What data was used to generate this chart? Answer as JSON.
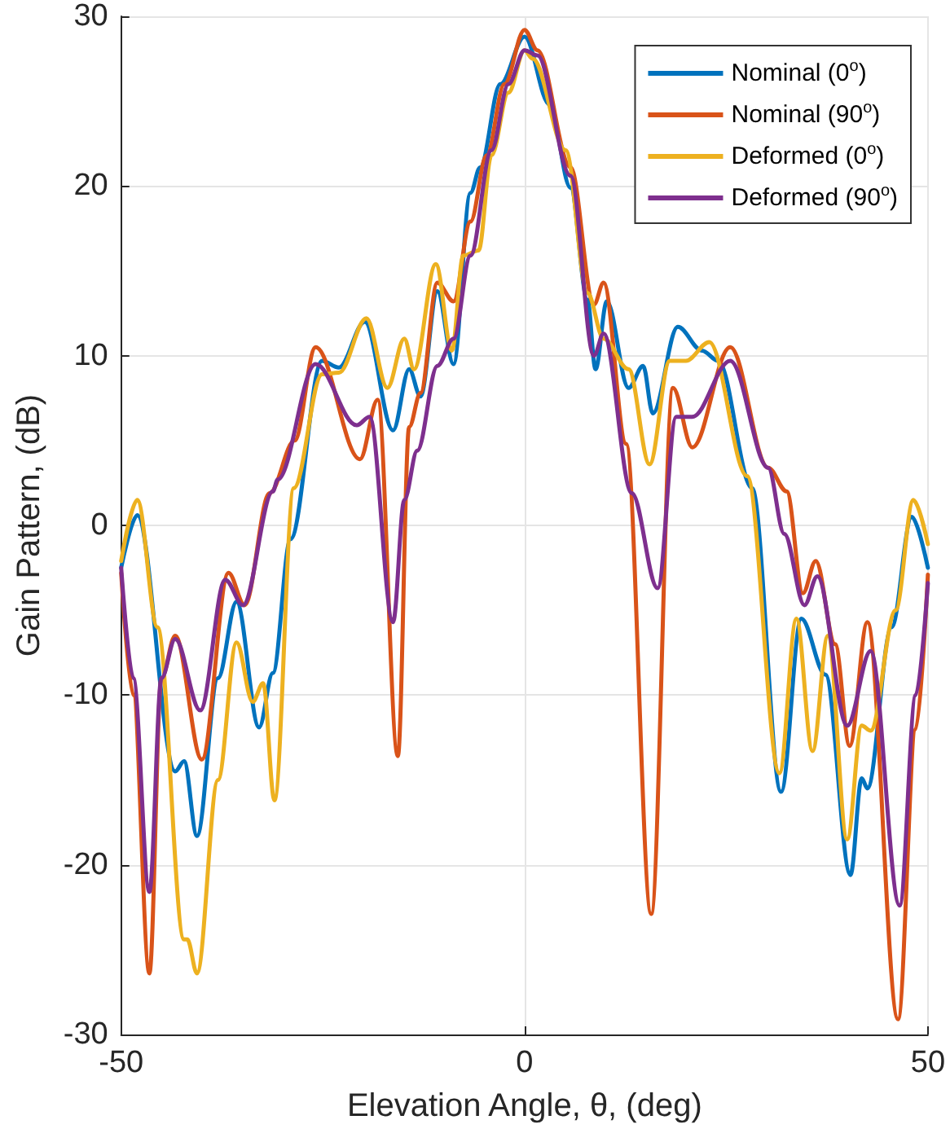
{
  "chart_data": {
    "type": "line",
    "xlabel": "Elevation Angle, θ, (deg)",
    "ylabel": "Gain Pattern, (dB)",
    "xlim": [
      -50,
      50
    ],
    "xticks": [
      -50,
      0,
      50
    ],
    "ylim": [
      -30,
      30
    ],
    "yticks": [
      -30,
      -20,
      -10,
      0,
      10,
      20,
      30
    ],
    "grid": true,
    "legend": "top right",
    "line_style": "solid",
    "marker": "none",
    "series": [
      {
        "name": "Nominal (0$^{o}$)",
        "color": "#0072bd",
        "x": [
          -50,
          -48,
          -43.3,
          -42.2,
          -40.6,
          -38,
          -35.7,
          -32.9,
          -31.2,
          -29,
          -25.1,
          -23,
          -19.8,
          -16.3,
          -14.3,
          -12.9,
          -10.8,
          -8.8,
          -6.7,
          -5.5,
          -3,
          0,
          3.1,
          5.7,
          7.8,
          8.8,
          10.2,
          12.9,
          14.7,
          15.9,
          19,
          22,
          24,
          28.2,
          31.8,
          34.3,
          37.3,
          40.4,
          41.8,
          42.5,
          45.5,
          48,
          50
        ],
        "values": [
          -2.5,
          0.6,
          -14.5,
          -13.9,
          -18.3,
          -9,
          -4.5,
          -11.9,
          -8.7,
          -0.8,
          9.7,
          9.3,
          12,
          5.6,
          9.2,
          7.6,
          13.8,
          9.5,
          19.6,
          21.1,
          26,
          28.8,
          24.8,
          19.9,
          13.3,
          9.2,
          13.2,
          8.1,
          9.4,
          6.6,
          11.7,
          10.3,
          9.7,
          2.2,
          -15.7,
          -5.5,
          -8.8,
          -20.6,
          -14.9,
          -15.5,
          -6,
          0.5,
          -2.5
        ]
      },
      {
        "name": "Nominal (90$^{o}$)",
        "color": "#d95319",
        "x": [
          -50,
          -48.5,
          -46.5,
          -45,
          -43.3,
          -40,
          -36.7,
          -34.7,
          -31.6,
          -28.5,
          -25.9,
          -20.4,
          -18.2,
          -15.7,
          -14.3,
          -12.9,
          -10.8,
          -8.8,
          -6.7,
          -4.7,
          -2.5,
          0,
          1.6,
          5.7,
          8.6,
          9.8,
          12.6,
          15.7,
          18.4,
          20.8,
          25.5,
          30.2,
          32.5,
          34.5,
          36.1,
          38.5,
          40.3,
          42.5,
          46.3,
          48.5,
          50
        ],
        "values": [
          -2.8,
          -10,
          -26.4,
          -9,
          -6.5,
          -13.8,
          -2.8,
          -4.7,
          1.9,
          5,
          10.5,
          3.9,
          7.4,
          -13.6,
          5.8,
          7.8,
          14.3,
          13.2,
          17.9,
          21.8,
          26,
          29.2,
          28,
          21.1,
          13,
          14.3,
          4.8,
          -22.9,
          8.1,
          4.6,
          10.5,
          3.4,
          2,
          -4,
          -2.1,
          -7,
          -13,
          -5.7,
          -29.1,
          -12,
          -2.9
        ]
      },
      {
        "name": "Deformed (0$^{o}$)",
        "color": "#edb120",
        "x": [
          -50,
          -48,
          -45.5,
          -42.2,
          -41.8,
          -40.6,
          -38,
          -35.7,
          -33.7,
          -32.4,
          -31,
          -28.6,
          -25.1,
          -23,
          -19.6,
          -17,
          -14.9,
          -13.7,
          -11,
          -9,
          -7.6,
          -5.7,
          -4.1,
          -2,
          0,
          1,
          5.1,
          7.8,
          9.8,
          12.9,
          15.5,
          18,
          20,
          22.9,
          27.6,
          31.6,
          33.7,
          35.7,
          37.6,
          40,
          41.8,
          42.9,
          46,
          48.2,
          50
        ],
        "values": [
          -2.1,
          1.5,
          -6,
          -24.4,
          -24.4,
          -26.4,
          -15,
          -6.9,
          -10.4,
          -9.3,
          -16.2,
          2.2,
          8.9,
          9,
          12.2,
          8.1,
          11,
          9.2,
          15.4,
          10.3,
          15.9,
          16.2,
          21.8,
          25.5,
          28,
          27.5,
          22.1,
          13.7,
          11,
          9.2,
          3.6,
          9.7,
          9.7,
          10.8,
          2.9,
          -14.6,
          -5.5,
          -13.3,
          -6.5,
          -18.5,
          -11.8,
          -12.1,
          -5,
          1.5,
          -1.1
        ]
      },
      {
        "name": "Deformed (90$^{o}$)",
        "color": "#7e2f8e",
        "x": [
          -50,
          -48.5,
          -46.5,
          -45,
          -43.3,
          -40.2,
          -37.1,
          -34.9,
          -31.2,
          -30.6,
          -25.9,
          -20.8,
          -19.2,
          -16.3,
          -14.9,
          -13.3,
          -10.8,
          -8.8,
          -6.7,
          -4.1,
          -2,
          0,
          1.6,
          5.7,
          8.6,
          9.8,
          13.3,
          16.5,
          18.8,
          20.8,
          25.5,
          30.2,
          32.2,
          34.7,
          36.3,
          40,
          42.9,
          46.5,
          48.5,
          50
        ],
        "values": [
          -2.5,
          -9,
          -21.6,
          -9,
          -6.7,
          -10.9,
          -3.2,
          -4.7,
          2,
          2.7,
          9.5,
          5.9,
          6.4,
          -5.7,
          1.5,
          4.4,
          9.4,
          11,
          15.9,
          22.1,
          26,
          28,
          27.7,
          20.6,
          10,
          11.3,
          1.9,
          -3.7,
          6.4,
          6.4,
          9.7,
          3.4,
          -0.5,
          -4.7,
          -3,
          -11.8,
          -7.4,
          -22.4,
          -10,
          -3.4
        ]
      }
    ]
  }
}
